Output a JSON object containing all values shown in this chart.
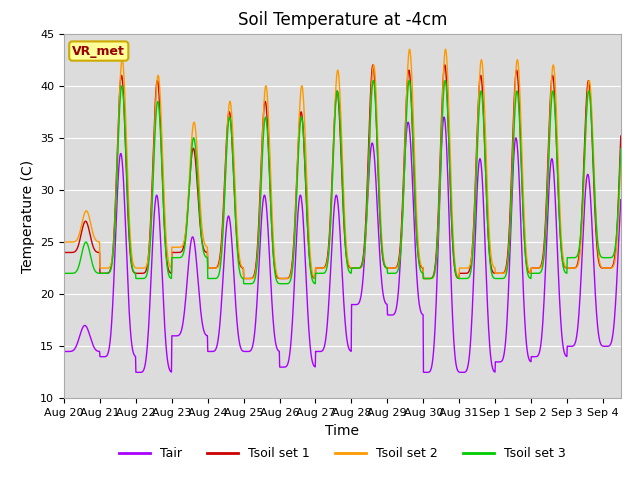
{
  "title": "Soil Temperature at -4cm",
  "xlabel": "Time",
  "ylabel": "Temperature (C)",
  "ylim": [
    10,
    45
  ],
  "xtick_labels": [
    "Aug 20",
    "Aug 21",
    "Aug 22",
    "Aug 23",
    "Aug 24",
    "Aug 25",
    "Aug 26",
    "Aug 27",
    "Aug 28",
    "Aug 29",
    "Aug 30",
    "Aug 31",
    "Sep 1",
    "Sep 2",
    "Sep 3",
    "Sep 4"
  ],
  "legend_labels": [
    "Tair",
    "Tsoil set 1",
    "Tsoil set 2",
    "Tsoil set 3"
  ],
  "line_colors": [
    "#aa00ff",
    "#cc0000",
    "#ff9900",
    "#00cc00"
  ],
  "background_color": "#ffffff",
  "plot_bg_color": "#dcdcdc",
  "annotation_text": "VR_met",
  "annotation_bg": "#ffff99",
  "annotation_border": "#ccaa00",
  "annotation_text_color": "#990000",
  "title_fontsize": 12,
  "axis_fontsize": 10,
  "tick_fontsize": 8,
  "legend_fontsize": 9,
  "grid_color": "#ffffff"
}
